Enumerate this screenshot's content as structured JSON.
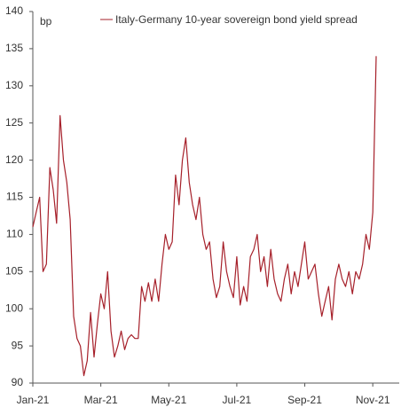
{
  "chart_data": {
    "type": "line",
    "title": "Italy-Germany 10-year sovereign bond yield spread",
    "y_label": "bp",
    "categories": [
      "Jan-21",
      null,
      null,
      null,
      null,
      null,
      null,
      null,
      null,
      null,
      null,
      null,
      null,
      null,
      null,
      null,
      null,
      null,
      null,
      null,
      "Mar-21",
      null,
      null,
      null,
      null,
      null,
      null,
      null,
      null,
      null,
      null,
      null,
      null,
      null,
      null,
      null,
      null,
      null,
      null,
      null,
      "May-21",
      null,
      null,
      null,
      null,
      null,
      null,
      null,
      null,
      null,
      null,
      null,
      null,
      null,
      null,
      null,
      null,
      null,
      null,
      null,
      "Jul-21",
      null,
      null,
      null,
      null,
      null,
      null,
      null,
      null,
      null,
      null,
      null,
      null,
      null,
      null,
      null,
      null,
      null,
      null,
      null,
      "Sep-21",
      null,
      null,
      null,
      null,
      null,
      null,
      null,
      null,
      null,
      null,
      null,
      null,
      null,
      null,
      null,
      null,
      null,
      null,
      null,
      "Nov-21",
      null
    ],
    "series": [
      {
        "name": "Italy-Germany 10-year sovereign bond yield spread",
        "color": "#a6202a",
        "values": [
          111,
          113,
          115,
          105,
          106,
          119,
          116,
          111.5,
          126,
          120,
          117,
          112,
          99,
          96,
          95,
          91,
          93,
          99.5,
          93.5,
          98,
          102,
          100,
          105,
          97,
          93.5,
          95,
          97,
          94.5,
          96,
          96.5,
          96,
          96,
          103,
          101,
          103.5,
          101,
          104,
          101,
          106,
          110,
          108,
          109,
          118,
          114,
          120,
          123,
          117,
          114,
          112,
          115,
          110,
          108,
          109,
          104,
          101.5,
          103,
          109,
          105,
          103,
          101.5,
          107,
          100.5,
          103,
          101,
          107,
          108,
          110,
          105,
          107,
          103,
          108,
          104,
          102,
          101,
          104,
          106,
          102,
          105,
          103,
          106,
          109,
          104,
          105,
          106,
          102,
          99,
          101,
          103,
          98.5,
          104,
          106,
          104,
          103,
          105,
          102,
          105,
          104,
          106,
          110,
          108,
          113,
          134
        ]
      }
    ],
    "ylim": [
      90,
      140
    ],
    "yticks": [
      90,
      95,
      100,
      105,
      110,
      115,
      120,
      125,
      130,
      135,
      140
    ],
    "grid": false
  }
}
